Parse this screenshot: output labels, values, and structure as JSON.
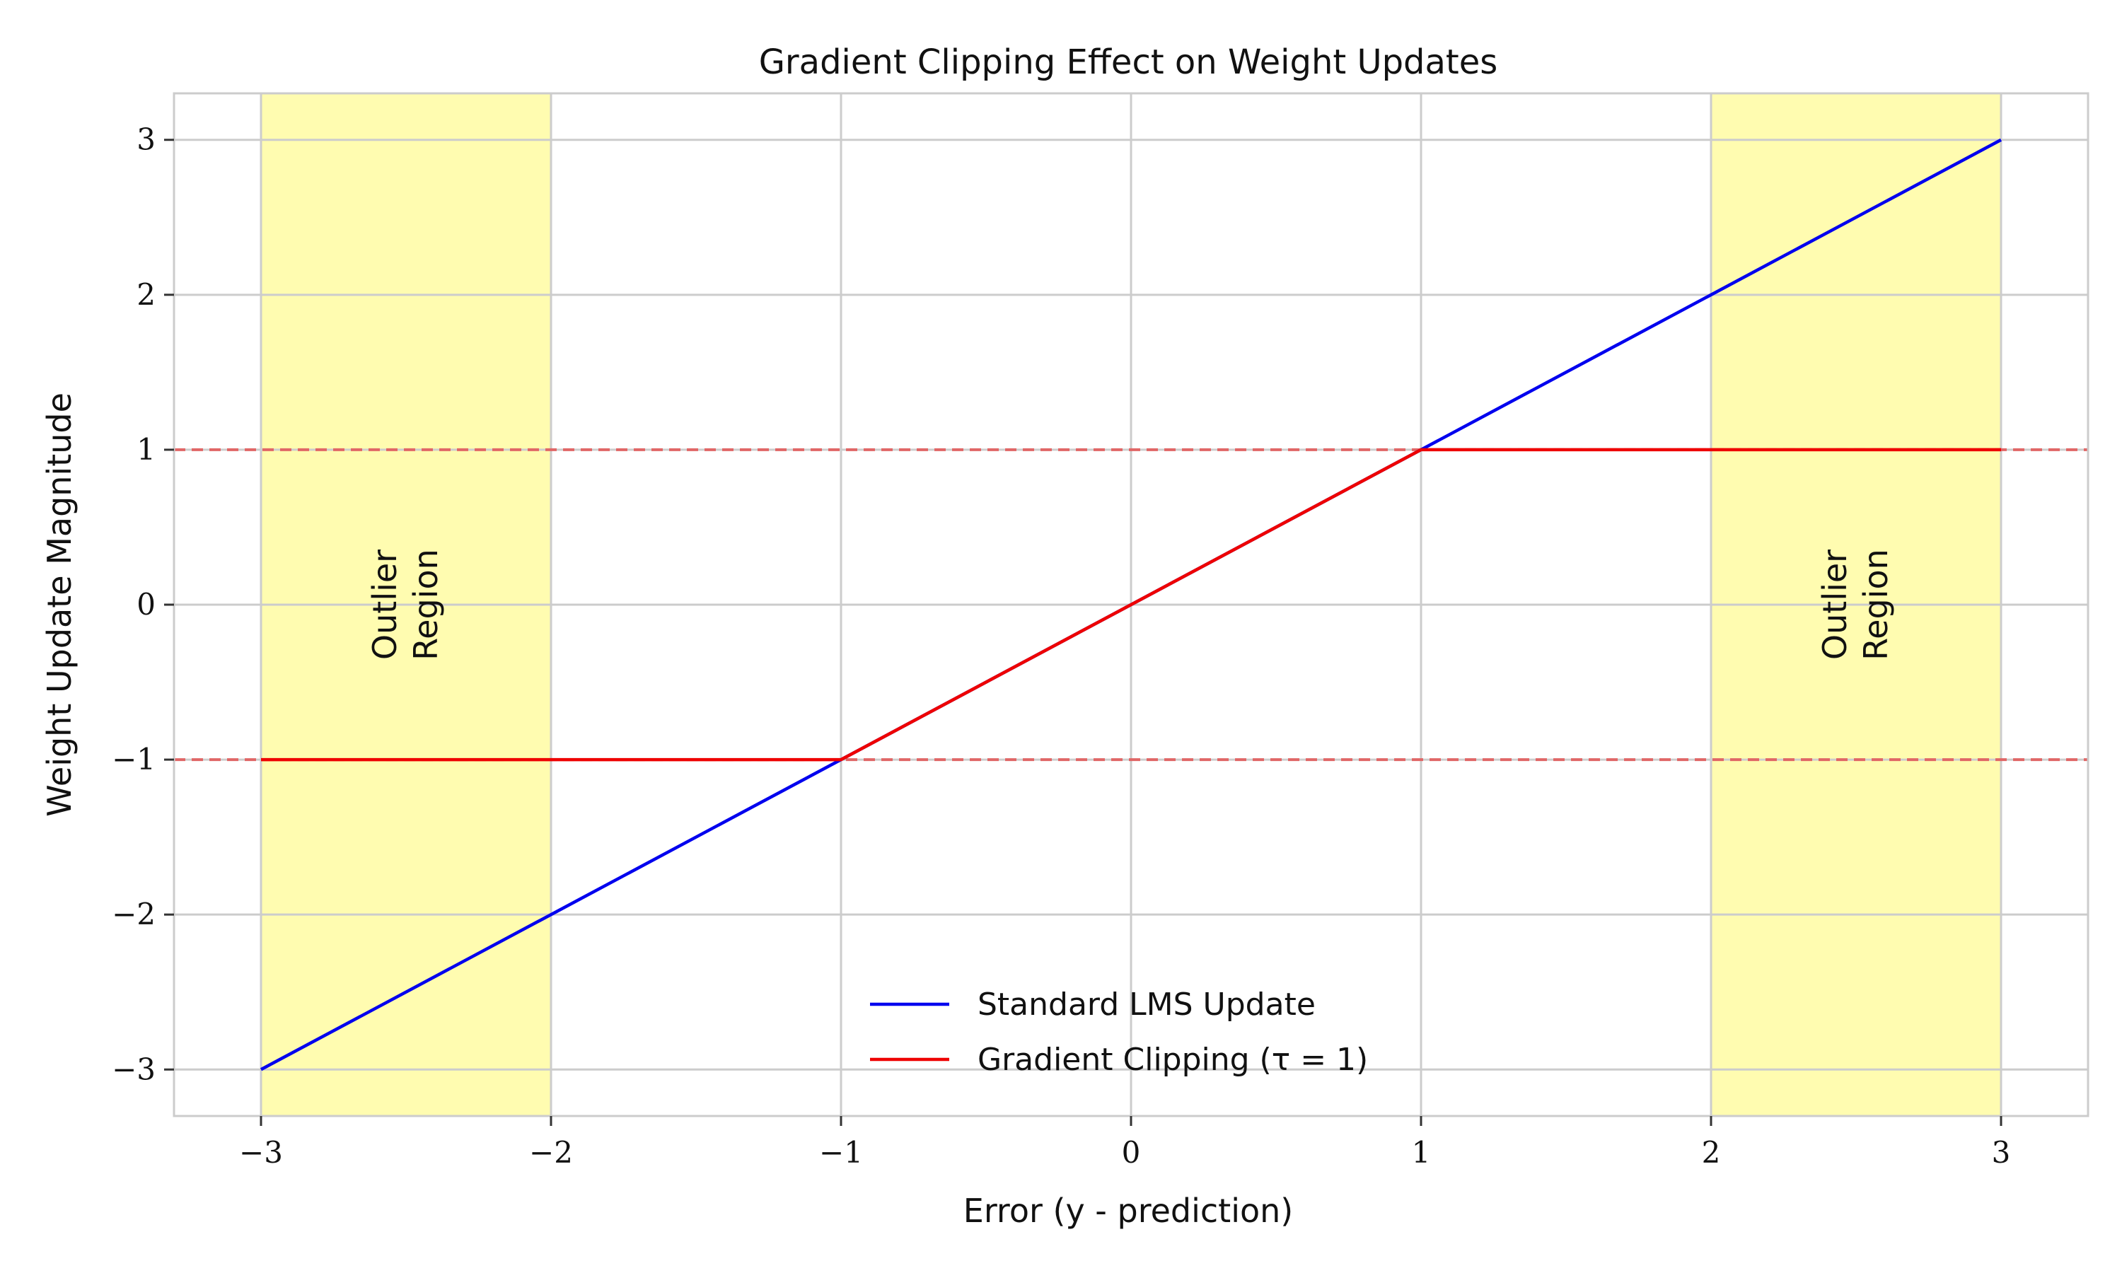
{
  "chart_data": {
    "type": "line",
    "title": "Gradient Clipping Effect on Weight Updates",
    "xlabel": "Error (y - prediction)",
    "ylabel": "Weight Update Magnitude",
    "xlim": [
      -3.3,
      3.3
    ],
    "ylim": [
      -3.3,
      3.3
    ],
    "xticks": [
      -3,
      -2,
      -1,
      0,
      1,
      2,
      3
    ],
    "yticks": [
      -3,
      -2,
      -1,
      0,
      1,
      2,
      3
    ],
    "xtick_labels": [
      "−3",
      "−2",
      "−1",
      "0",
      "1",
      "2",
      "3"
    ],
    "ytick_labels": [
      "−3",
      "−2",
      "−1",
      "0",
      "1",
      "2",
      "3"
    ],
    "grid": true,
    "legend_position": "lower-center",
    "series": [
      {
        "name": "Standard LMS Update",
        "color": "#0000ee",
        "x": [
          -3,
          3
        ],
        "y": [
          -3,
          3
        ]
      },
      {
        "name": "Gradient Clipping (τ = 1)",
        "color": "#ee0000",
        "x": [
          -3,
          -1,
          1,
          3
        ],
        "y": [
          -1,
          -1,
          1,
          1
        ]
      }
    ],
    "threshold_lines": {
      "values": [
        1,
        -1
      ],
      "color": "#e06666",
      "style": "dashed"
    },
    "shaded_regions": [
      {
        "x_range": [
          -3,
          -2
        ],
        "label_line1": "Outlier",
        "label_line2": "Region"
      },
      {
        "x_range": [
          2,
          3
        ],
        "label_line1": "Outlier",
        "label_line2": "Region"
      }
    ],
    "shade_color": "#fffcb0"
  }
}
